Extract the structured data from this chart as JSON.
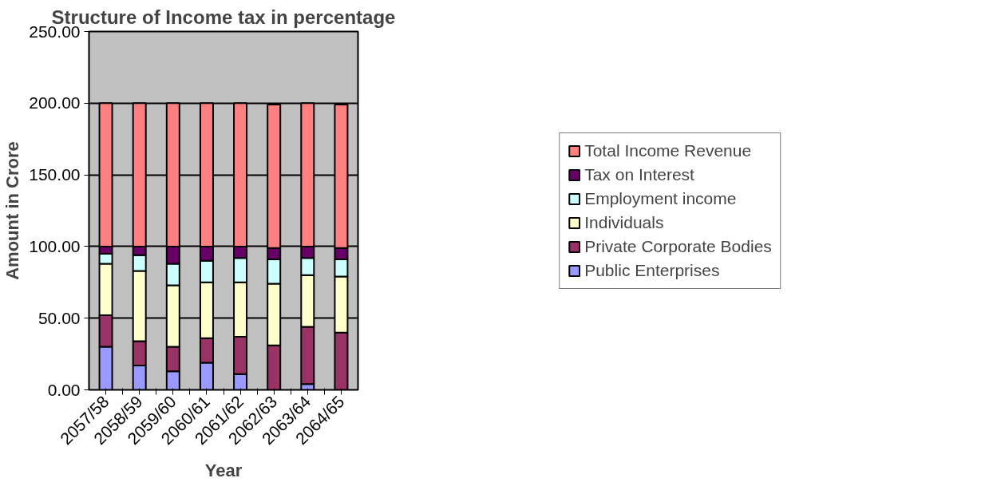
{
  "chart_data": {
    "type": "bar",
    "title": "Structure of Income tax in percentage",
    "xlabel": "Year",
    "ylabel": "Amount in Crore",
    "categories": [
      "2057/58",
      "2058/59",
      "2059/60",
      "2060/61",
      "2061/62",
      "2062/63",
      "2063/64",
      "2064/65"
    ],
    "stacked": true,
    "ylim": [
      0,
      250
    ],
    "yticks": [
      {
        "value": 0,
        "label": "0.00"
      },
      {
        "value": 50,
        "label": "50.00"
      },
      {
        "value": 100,
        "label": "100.00"
      },
      {
        "value": 150,
        "label": "150.00"
      },
      {
        "value": 200,
        "label": "200.00"
      },
      {
        "value": 250,
        "label": "250.00"
      }
    ],
    "grid": "y",
    "legend": "right",
    "series": [
      {
        "name": "Public Enterprises",
        "color": "#9999ff",
        "values": [
          30,
          17,
          13,
          19,
          11,
          null,
          4,
          null
        ]
      },
      {
        "name": "Private Corporate Bodies",
        "color": "#993366",
        "values": [
          22,
          17,
          17,
          17,
          26,
          31,
          40,
          40
        ]
      },
      {
        "name": "Individuals",
        "color": "#ffffcc",
        "values": [
          36,
          49,
          43,
          39,
          38,
          43,
          36,
          39
        ]
      },
      {
        "name": "Employment income",
        "color": "#ccffff",
        "values": [
          7,
          11,
          15,
          15,
          17,
          17,
          12,
          12
        ]
      },
      {
        "name": "Tax on Interest",
        "color": "#660066",
        "values": [
          5,
          6,
          12,
          10,
          8,
          8,
          8,
          8
        ]
      },
      {
        "name": "Total Income Revenue",
        "color": "#ff8080",
        "values": [
          100,
          100,
          100,
          100,
          100,
          100,
          100,
          100
        ]
      }
    ]
  }
}
